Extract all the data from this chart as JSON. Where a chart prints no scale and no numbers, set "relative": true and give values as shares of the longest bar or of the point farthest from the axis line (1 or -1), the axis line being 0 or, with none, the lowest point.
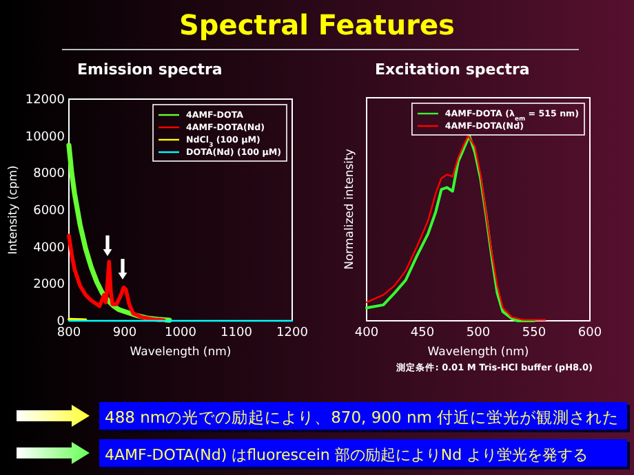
{
  "chart_data": [
    {
      "type": "other",
      "title": "Spectral Features",
      "annotations": [
        "488 nmの光での励起により、870, 900 nm 付近に蛍光が観測された",
        "4AMF-DOTA(Nd) はfluorescein 部の励起によりNd より蛍光を発する"
      ]
    },
    {
      "type": "line",
      "title": "Emission spectra",
      "xlabel": "Wavelength (nm)",
      "ylabel": "Intensity (cpm)",
      "xlim": [
        800,
        1200
      ],
      "ylim": [
        0,
        12000
      ],
      "xticks": [
        800,
        900,
        1000,
        1100,
        1200
      ],
      "yticks": [
        0,
        2000,
        4000,
        6000,
        8000,
        10000,
        12000
      ],
      "legend": "top right",
      "series": [
        {
          "name": "4AMF-DOTA",
          "color": "#66ff33",
          "x": [
            800,
            805,
            810,
            820,
            830,
            840,
            850,
            860,
            870,
            880,
            890,
            900,
            920,
            940,
            960,
            980
          ],
          "values": [
            9500,
            8000,
            6900,
            5200,
            3900,
            2900,
            2100,
            1500,
            1100,
            800,
            600,
            500,
            300,
            150,
            80,
            30
          ]
        },
        {
          "name": "4AMF-DOTA(Nd)",
          "color": "#ff0000",
          "x": [
            800,
            805,
            810,
            820,
            830,
            840,
            850,
            855,
            863,
            866,
            868,
            872,
            875,
            878,
            885,
            892,
            898,
            902,
            908,
            915,
            930,
            950,
            970
          ],
          "values": [
            4600,
            3600,
            2800,
            1900,
            1400,
            1100,
            900,
            800,
            1400,
            1000,
            1600,
            3200,
            1600,
            900,
            900,
            1300,
            1800,
            1700,
            900,
            400,
            200,
            80,
            30
          ]
        },
        {
          "name": "NdCl$_{3}$ (100 μM)",
          "color": "#ffff00",
          "x": [
            800,
            830
          ],
          "values": [
            80,
            60
          ]
        },
        {
          "name": "DOTA(Nd) (100 μM)",
          "color": "#00ffff",
          "x": [
            800,
            1200
          ],
          "values": [
            0,
            0
          ]
        }
      ]
    },
    {
      "type": "line",
      "title": "Excitation spectra",
      "xlabel": "Wavelength (nm)",
      "ylabel": "Normalized intensity",
      "relative": true,
      "xlim": [
        400,
        600
      ],
      "xticks": [
        400,
        450,
        500,
        550,
        600
      ],
      "legend": "top right",
      "annotations": [
        "測定条件: 0.01 M Tris-HCl buffer (pH8.0)"
      ],
      "series": [
        {
          "name": "4AMF-DOTA (λ$_{em}$ = 515 nm)",
          "color": "#33ff33",
          "x": [
            400,
            415,
            425,
            435,
            445,
            455,
            462,
            467,
            472,
            477,
            482,
            487,
            492,
            497,
            502,
            507,
            512,
            517,
            522,
            530,
            535,
            550
          ],
          "values": [
            0.07,
            0.086,
            0.15,
            0.22,
            0.35,
            0.47,
            0.59,
            0.71,
            0.72,
            0.7,
            0.86,
            0.93,
            1.0,
            0.91,
            0.77,
            0.57,
            0.35,
            0.15,
            0.05,
            0.012,
            0,
            0
          ]
        },
        {
          "name": "4AMF-DOTA(Nd)",
          "color": "#ff0000",
          "x": [
            400,
            415,
            425,
            435,
            445,
            455,
            462,
            467,
            472,
            477,
            482,
            487,
            491,
            497,
            502,
            507,
            512,
            517,
            522,
            530,
            540,
            560
          ],
          "values": [
            0.1,
            0.14,
            0.19,
            0.27,
            0.4,
            0.54,
            0.69,
            0.77,
            0.79,
            0.78,
            0.88,
            0.95,
            1.0,
            0.94,
            0.79,
            0.58,
            0.37,
            0.19,
            0.07,
            0.02,
            0.005,
            0.005
          ]
        }
      ]
    }
  ]
}
